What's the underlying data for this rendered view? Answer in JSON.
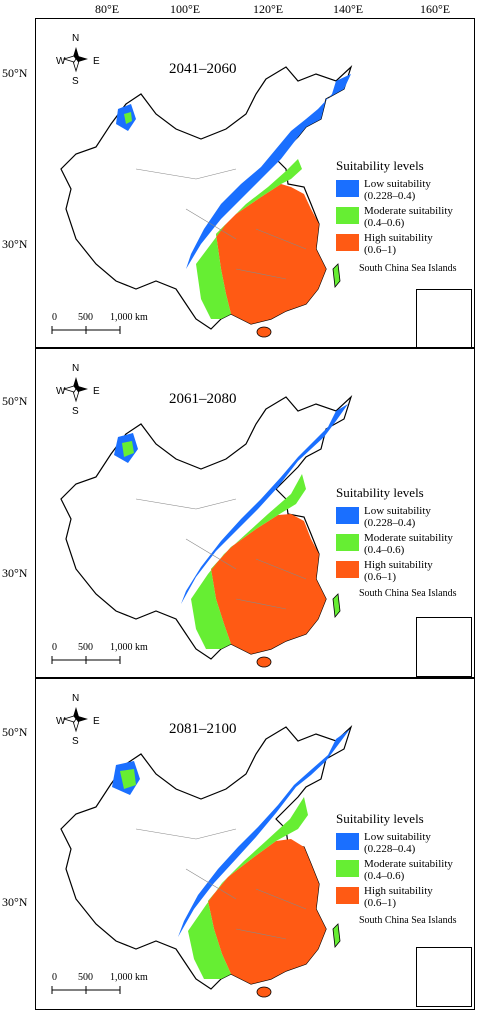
{
  "longitude_labels": [
    "80°E",
    "100°E",
    "120°E",
    "140°E",
    "160°E"
  ],
  "latitude_labels": [
    "50°N",
    "30°N"
  ],
  "compass": {
    "n": "N",
    "s": "S",
    "e": "E",
    "w": "W"
  },
  "legend": {
    "title": "Suitability levels",
    "items": [
      {
        "label": "Low suitability\n(0.228–0.4)",
        "color": "#1a6fff"
      },
      {
        "label": "Moderate suitability\n(0.4–0.6)",
        "color": "#66ee33"
      },
      {
        "label": "High suitability\n(0.6–1)",
        "color": "#ff5a14"
      }
    ]
  },
  "inset_label": "South China Sea Islands",
  "scale_bar": {
    "ticks": [
      "0",
      "500",
      "1,000 km"
    ]
  },
  "panels": [
    {
      "period": "2041–2060"
    },
    {
      "period": "2061–2080"
    },
    {
      "period": "2081–2100"
    }
  ],
  "colors": {
    "low": "#1a6fff",
    "moderate": "#66ee33",
    "high": "#ff5a14",
    "border": "#000000",
    "province": "#888888"
  }
}
